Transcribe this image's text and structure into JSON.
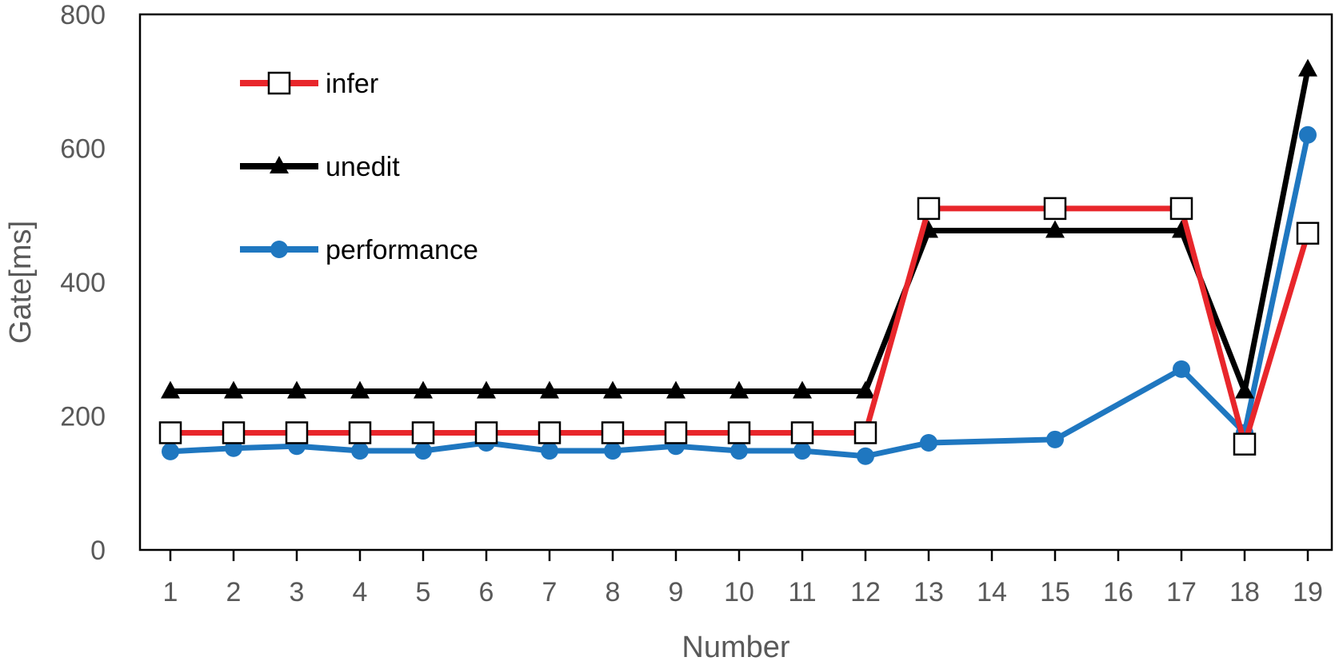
{
  "chart_data": {
    "type": "line",
    "title": "",
    "xlabel": "Number",
    "ylabel": "Gate[ms]",
    "categories": [
      "1",
      "2",
      "3",
      "4",
      "5",
      "6",
      "7",
      "8",
      "9",
      "10",
      "11",
      "12",
      "13",
      "14",
      "15",
      "16",
      "17",
      "18",
      "19"
    ],
    "ylim": [
      0,
      800
    ],
    "yticks": [
      0,
      200,
      400,
      600,
      800
    ],
    "grid": false,
    "legend_position": "top-left",
    "series": [
      {
        "name": "infer",
        "color": "#e8262b",
        "marker": "open-square",
        "points": [
          [
            0,
            175
          ],
          [
            1,
            175
          ],
          [
            2,
            175
          ],
          [
            3,
            175
          ],
          [
            4,
            175
          ],
          [
            5,
            175
          ],
          [
            6,
            175
          ],
          [
            7,
            175
          ],
          [
            8,
            175
          ],
          [
            9,
            175
          ],
          [
            10,
            175
          ],
          [
            11,
            175
          ],
          [
            12,
            510
          ],
          [
            14,
            510
          ],
          [
            16,
            510
          ],
          [
            17,
            158
          ],
          [
            18,
            473
          ]
        ]
      },
      {
        "name": "unedit",
        "color": "#000000",
        "marker": "filled-triangle",
        "points": [
          [
            0,
            237
          ],
          [
            1,
            237
          ],
          [
            2,
            237
          ],
          [
            3,
            237
          ],
          [
            4,
            237
          ],
          [
            5,
            237
          ],
          [
            6,
            237
          ],
          [
            7,
            237
          ],
          [
            8,
            237
          ],
          [
            9,
            237
          ],
          [
            10,
            237
          ],
          [
            11,
            237
          ],
          [
            12,
            477
          ],
          [
            14,
            477
          ],
          [
            16,
            477
          ],
          [
            17,
            237
          ],
          [
            18,
            718
          ]
        ]
      },
      {
        "name": "performance",
        "color": "#1f77c0",
        "marker": "filled-circle",
        "points": [
          [
            0,
            147
          ],
          [
            1,
            152
          ],
          [
            2,
            155
          ],
          [
            3,
            148
          ],
          [
            4,
            148
          ],
          [
            5,
            160
          ],
          [
            6,
            148
          ],
          [
            7,
            148
          ],
          [
            8,
            155
          ],
          [
            9,
            148
          ],
          [
            10,
            148
          ],
          [
            11,
            140
          ],
          [
            12,
            160
          ],
          [
            14,
            165
          ],
          [
            16,
            270
          ],
          [
            17,
            175
          ],
          [
            18,
            620
          ]
        ]
      }
    ]
  }
}
